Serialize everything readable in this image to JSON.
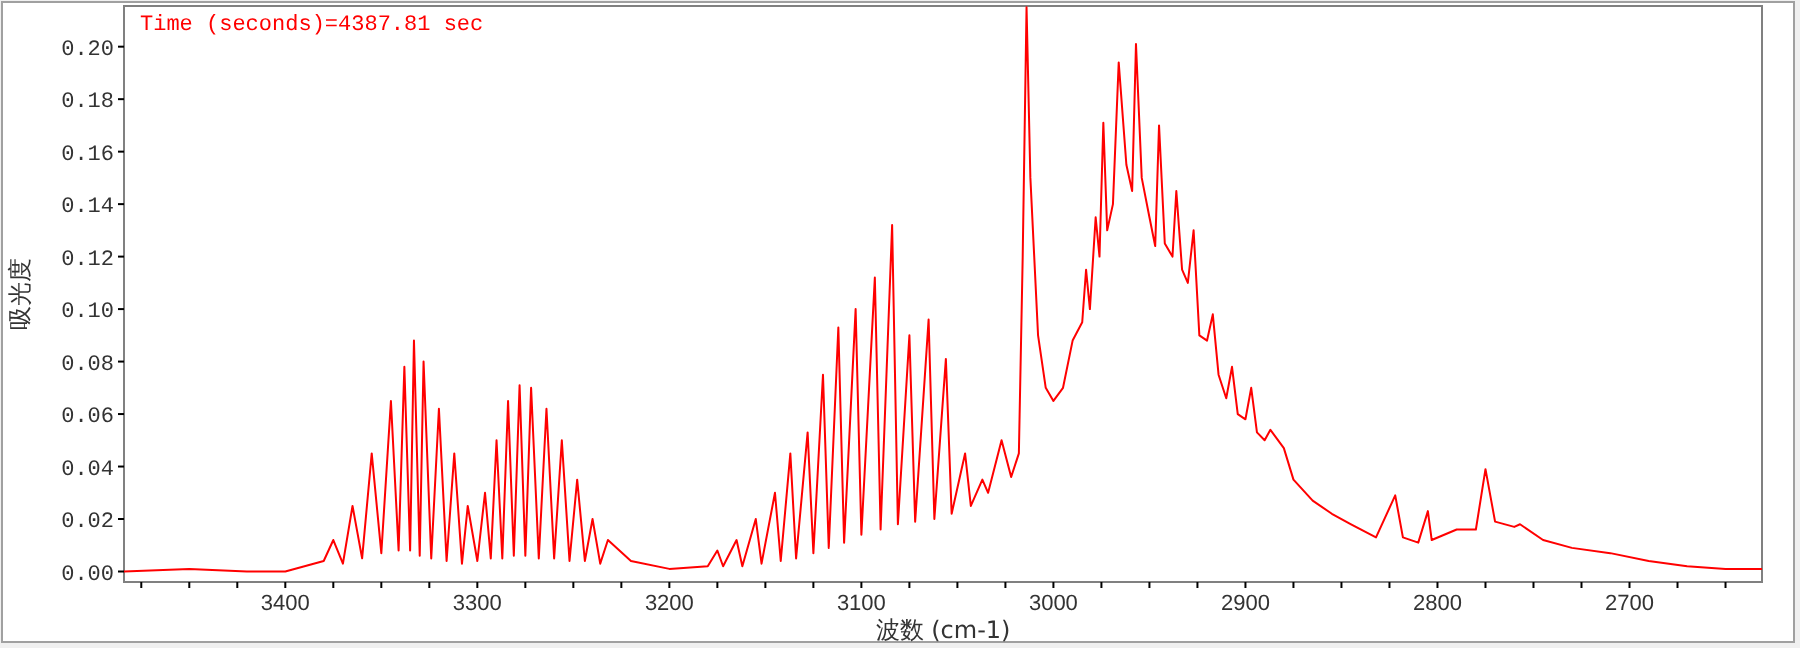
{
  "chart_data": {
    "type": "line",
    "xlabel": "波数 (cm-1)",
    "ylabel": "吸光度",
    "annotations": [
      "Time (seconds)=4387.81 sec"
    ],
    "xlim": [
      3484,
      2631
    ],
    "ylim": [
      -0.004,
      0.2155
    ],
    "xticks": [
      {
        "value": 3475,
        "label": null
      },
      {
        "value": 3450,
        "label": null
      },
      {
        "value": 3425,
        "label": null
      },
      3400,
      {
        "value": 3375,
        "label": null
      },
      {
        "value": 3350,
        "label": null
      },
      {
        "value": 3325,
        "label": null
      },
      3300,
      {
        "value": 3275,
        "label": null
      },
      {
        "value": 3250,
        "label": null
      },
      {
        "value": 3225,
        "label": null
      },
      3200,
      {
        "value": 3175,
        "label": null
      },
      {
        "value": 3150,
        "label": null
      },
      {
        "value": 3125,
        "label": null
      },
      3100,
      {
        "value": 3075,
        "label": null
      },
      {
        "value": 3050,
        "label": null
      },
      {
        "value": 3025,
        "label": null
      },
      3000,
      {
        "value": 2975,
        "label": null
      },
      {
        "value": 2950,
        "label": null
      },
      {
        "value": 2925,
        "label": null
      },
      2900,
      {
        "value": 2875,
        "label": null
      },
      {
        "value": 2850,
        "label": null
      },
      {
        "value": 2825,
        "label": null
      },
      2800,
      {
        "value": 2775,
        "label": null
      },
      {
        "value": 2750,
        "label": null
      },
      {
        "value": 2725,
        "label": null
      },
      2700,
      {
        "value": 2675,
        "label": null
      },
      {
        "value": 2650,
        "label": null
      }
    ],
    "yticks": [
      {
        "value": 0,
        "label": "0.00"
      },
      {
        "value": 0.02,
        "label": "0.02"
      },
      {
        "value": 0.04,
        "label": "0.04"
      },
      {
        "value": 0.06,
        "label": "0.06"
      },
      {
        "value": 0.08,
        "label": "0.08"
      },
      {
        "value": 0.1,
        "label": "0.10"
      },
      {
        "value": 0.12,
        "label": "0.12"
      },
      {
        "value": 0.14,
        "label": "0.14"
      },
      {
        "value": 0.16,
        "label": "0.16"
      },
      {
        "value": 0.18,
        "label": "0.18"
      },
      {
        "value": 0.2,
        "label": "0.20"
      }
    ],
    "grid": false,
    "series": [
      {
        "color": "#ff0000",
        "x": [
          3484,
          3450,
          3420,
          3400,
          3390,
          3380,
          3375,
          3370,
          3365,
          3360,
          3355,
          3350,
          3345,
          3341,
          3338,
          3335,
          3333,
          3330,
          3328,
          3324,
          3320,
          3316,
          3312,
          3308,
          3305,
          3300,
          3296,
          3293,
          3290,
          3287,
          3284,
          3281,
          3278,
          3275,
          3272,
          3268,
          3264,
          3260,
          3256,
          3252,
          3248,
          3244,
          3240,
          3236,
          3232,
          3220,
          3200,
          3180,
          3175,
          3172,
          3165,
          3162,
          3155,
          3152,
          3145,
          3142,
          3137,
          3134,
          3128,
          3125,
          3120,
          3117,
          3112,
          3109,
          3103,
          3100,
          3093,
          3090,
          3084,
          3081,
          3075,
          3072,
          3065,
          3062,
          3056,
          3053,
          3046,
          3043,
          3037,
          3034,
          3027,
          3022,
          3018,
          3016,
          3014,
          3012,
          3008,
          3004,
          3000,
          2995,
          2990,
          2985,
          2983,
          2981,
          2978,
          2976,
          2974,
          2972,
          2969,
          2966,
          2962,
          2959,
          2957,
          2954,
          2950,
          2947,
          2945,
          2942,
          2938,
          2936,
          2933,
          2930,
          2927,
          2924,
          2920,
          2917,
          2914,
          2910,
          2907,
          2904,
          2900,
          2897,
          2894,
          2890,
          2887,
          2880,
          2875,
          2865,
          2855,
          2845,
          2832,
          2822,
          2818,
          2810,
          2805,
          2803,
          2790,
          2780,
          2775,
          2770,
          2760,
          2757,
          2745,
          2730,
          2710,
          2690,
          2670,
          2650,
          2631
        ],
        "values": [
          0.0,
          0.001,
          0.0,
          0.0,
          0.002,
          0.004,
          0.012,
          0.003,
          0.025,
          0.005,
          0.045,
          0.007,
          0.065,
          0.008,
          0.078,
          0.008,
          0.088,
          0.006,
          0.08,
          0.005,
          0.062,
          0.004,
          0.045,
          0.003,
          0.025,
          0.004,
          0.03,
          0.005,
          0.05,
          0.005,
          0.065,
          0.006,
          0.071,
          0.006,
          0.07,
          0.005,
          0.062,
          0.005,
          0.05,
          0.004,
          0.035,
          0.004,
          0.02,
          0.003,
          0.012,
          0.004,
          0.001,
          0.002,
          0.008,
          0.002,
          0.012,
          0.002,
          0.02,
          0.003,
          0.03,
          0.004,
          0.045,
          0.005,
          0.053,
          0.007,
          0.075,
          0.009,
          0.093,
          0.011,
          0.1,
          0.014,
          0.112,
          0.016,
          0.132,
          0.018,
          0.09,
          0.019,
          0.096,
          0.02,
          0.081,
          0.022,
          0.045,
          0.025,
          0.035,
          0.03,
          0.05,
          0.036,
          0.045,
          0.12,
          0.215,
          0.15,
          0.09,
          0.07,
          0.065,
          0.07,
          0.088,
          0.095,
          0.115,
          0.1,
          0.135,
          0.12,
          0.171,
          0.13,
          0.14,
          0.194,
          0.155,
          0.145,
          0.201,
          0.15,
          0.135,
          0.124,
          0.17,
          0.125,
          0.12,
          0.145,
          0.115,
          0.11,
          0.13,
          0.09,
          0.088,
          0.098,
          0.075,
          0.066,
          0.078,
          0.06,
          0.058,
          0.07,
          0.053,
          0.05,
          0.054,
          0.047,
          0.035,
          0.027,
          0.022,
          0.018,
          0.013,
          0.029,
          0.013,
          0.011,
          0.023,
          0.012,
          0.016,
          0.016,
          0.039,
          0.019,
          0.017,
          0.018,
          0.012,
          0.009,
          0.007,
          0.004,
          0.002,
          0.001,
          0.001
        ]
      }
    ]
  }
}
